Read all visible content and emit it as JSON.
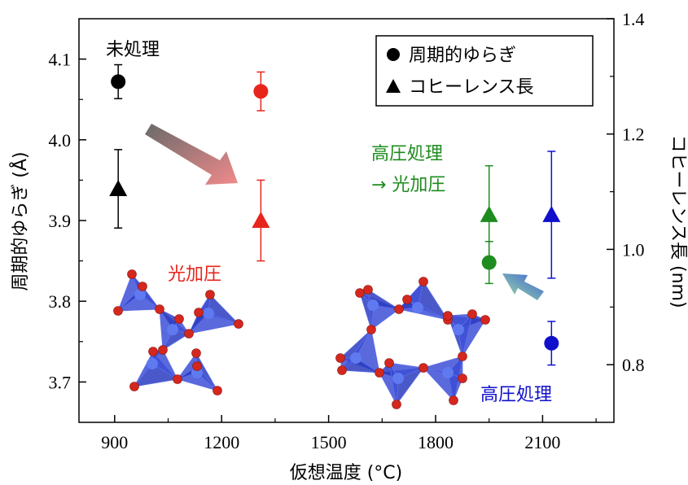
{
  "chart_data": {
    "type": "scatter",
    "xlabel": "仮想温度 (°C)",
    "ylabel_left": "周期的ゆらぎ (Å)",
    "ylabel_right": "コヒーレンス長 (nm)",
    "xlim": [
      800,
      2300
    ],
    "ylim_left": [
      3.65,
      4.15
    ],
    "ylim_right": [
      0.7,
      1.4
    ],
    "x_ticks": [
      900,
      1200,
      1500,
      1800,
      2100
    ],
    "y_left_ticks": [
      3.7,
      3.8,
      3.9,
      4.0,
      4.1
    ],
    "y_right_ticks": [
      0.8,
      1.0,
      1.2,
      1.4
    ],
    "legend": {
      "position": "top-right",
      "items": [
        {
          "marker": "circle",
          "label": "周期的ゆらぎ"
        },
        {
          "marker": "triangle",
          "label": "コヒーレンス長"
        }
      ]
    },
    "series": [
      {
        "marker": "circle",
        "axis": "left",
        "color": "#000000",
        "label": "未処理",
        "points": [
          {
            "x": 910,
            "y": 4.072,
            "err_low": 0.021,
            "err_high": 0.021
          }
        ]
      },
      {
        "marker": "triangle",
        "axis": "right",
        "color": "#000000",
        "label": "未処理",
        "points": [
          {
            "x": 910,
            "y": 1.105,
            "err_low": 0.068,
            "err_high": 0.068
          }
        ]
      },
      {
        "marker": "circle",
        "axis": "left",
        "color": "#e8251d",
        "label": "光加圧",
        "points": [
          {
            "x": 1310,
            "y": 4.06,
            "err_low": 0.024,
            "err_high": 0.024
          }
        ]
      },
      {
        "marker": "triangle",
        "axis": "right",
        "color": "#e8251d",
        "label": "光加圧",
        "points": [
          {
            "x": 1310,
            "y": 1.05,
            "err_low": 0.07,
            "err_high": 0.07
          }
        ]
      },
      {
        "marker": "circle",
        "axis": "left",
        "color": "#1e8c1e",
        "label": "高圧処理 → 光加圧",
        "points": [
          {
            "x": 1950,
            "y": 3.848,
            "err_low": 0.026,
            "err_high": 0.026
          }
        ]
      },
      {
        "marker": "triangle",
        "axis": "right",
        "color": "#1e8c1e",
        "label": "高圧処理 → 光加圧",
        "points": [
          {
            "x": 1950,
            "y": 1.06,
            "err_low": 0.085,
            "err_high": 0.085
          }
        ]
      },
      {
        "marker": "circle",
        "axis": "left",
        "color": "#1010cc",
        "label": "高圧処理",
        "points": [
          {
            "x": 2125,
            "y": 3.748,
            "err_low": 0.027,
            "err_high": 0.027
          }
        ]
      },
      {
        "marker": "triangle",
        "axis": "right",
        "color": "#1010cc",
        "label": "高圧処理",
        "points": [
          {
            "x": 2125,
            "y": 1.06,
            "err_low": 0.11,
            "err_high": 0.11
          }
        ]
      }
    ],
    "annotations": [
      {
        "id": "untreated",
        "text": "未処理",
        "color": "#000000"
      },
      {
        "id": "photo",
        "text": "光加圧",
        "color": "#e8251d"
      },
      {
        "id": "hp_photo_1",
        "text": "高圧処理",
        "color": "#1e8c1e"
      },
      {
        "id": "hp_photo_2",
        "text": "→ 光加圧",
        "color": "#1e8c1e"
      },
      {
        "id": "hp",
        "text": "高圧処理",
        "color": "#1010cc"
      }
    ]
  }
}
